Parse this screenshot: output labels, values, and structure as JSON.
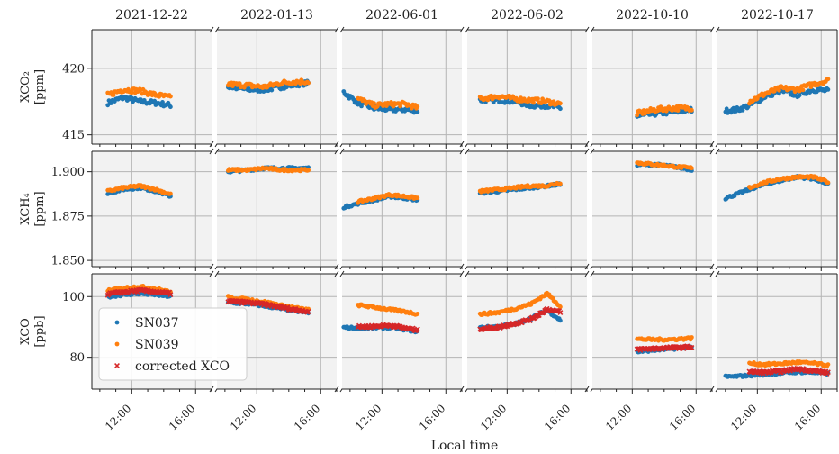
{
  "chart_data": {
    "type": "scatter",
    "xlabel": "Local time",
    "dates": [
      "2021-12-22",
      "2022-01-13",
      "2022-06-01",
      "2022-06-02",
      "2022-10-10",
      "2022-10-17"
    ],
    "xrange_hours": [
      9.5,
      17
    ],
    "xticks": [
      12,
      16
    ],
    "xtick_labels": [
      "12:00",
      "16:00"
    ],
    "panels": [
      {
        "ylabel": [
          "XCO₂",
          "[ppm]"
        ],
        "ylim": [
          414.3,
          422.9
        ],
        "yticks": [
          415,
          420
        ],
        "ytick_labels": [
          "415",
          "420"
        ]
      },
      {
        "ylabel": [
          "XCH₄",
          "[ppm]"
        ],
        "ylim": [
          1.8465,
          1.9115
        ],
        "yticks": [
          1.85,
          1.875,
          1.9
        ],
        "ytick_labels": [
          "1.850",
          "1.875",
          "1.900"
        ]
      },
      {
        "ylabel": [
          "XCO",
          "[ppb]"
        ],
        "ylim": [
          69.5,
          107.5
        ],
        "yticks": [
          80,
          100
        ],
        "ytick_labels": [
          "80",
          "100"
        ]
      }
    ],
    "legend": {
      "placement": "lower-left of XCO panel",
      "entries": [
        "SN037",
        "SN039",
        "corrected XCO"
      ]
    },
    "series": [
      {
        "name": "SN037",
        "color": "#1f77b4",
        "marker": "circle"
      },
      {
        "name": "SN039",
        "color": "#ff7f0e",
        "marker": "circle"
      },
      {
        "name": "corrected XCO",
        "color": "#d62728",
        "marker": "cross",
        "panel": "XCO"
      }
    ],
    "data": {
      "XCO2": {
        "SN037": [
          [
            [
              10.5,
              417.4
            ],
            [
              11.5,
              417.8
            ],
            [
              12.5,
              417.5
            ],
            [
              13.5,
              417.4
            ],
            [
              14.5,
              417.2
            ]
          ],
          [
            [
              10.2,
              418.6
            ],
            [
              11.5,
              418.4
            ],
            [
              12.5,
              418.4
            ],
            [
              13.5,
              418.6
            ],
            [
              14.5,
              418.8
            ],
            [
              15.3,
              418.9
            ]
          ],
          [
            [
              9.6,
              418.2
            ],
            [
              10.5,
              417.4
            ],
            [
              11.5,
              417.0
            ],
            [
              12.5,
              416.9
            ],
            [
              13.5,
              416.9
            ],
            [
              14.3,
              416.8
            ]
          ],
          [
            [
              10.3,
              417.6
            ],
            [
              11.5,
              417.6
            ],
            [
              12.5,
              417.5
            ],
            [
              13.5,
              417.2
            ],
            [
              14.5,
              417.2
            ],
            [
              15.4,
              417.0
            ]
          ],
          [
            [
              12.3,
              416.4
            ],
            [
              13.5,
              416.6
            ],
            [
              14.5,
              416.7
            ],
            [
              15.8,
              416.9
            ]
          ],
          [
            [
              10.0,
              416.8
            ],
            [
              10.8,
              416.9
            ],
            [
              11.5,
              417.2
            ],
            [
              12.5,
              417.9
            ],
            [
              13.5,
              418.3
            ],
            [
              14.5,
              418.0
            ],
            [
              15.5,
              418.4
            ],
            [
              16.5,
              418.3
            ]
          ]
        ],
        "SN039": [
          [
            [
              10.5,
              418.0
            ],
            [
              11.5,
              418.4
            ],
            [
              12.5,
              418.3
            ],
            [
              13.5,
              418.0
            ],
            [
              14.5,
              417.8
            ]
          ],
          [
            [
              10.2,
              418.8
            ],
            [
              11.5,
              418.7
            ],
            [
              12.5,
              418.6
            ],
            [
              13.5,
              418.9
            ],
            [
              14.5,
              419.0
            ],
            [
              15.3,
              419.0
            ]
          ],
          [
            [
              10.5,
              417.7
            ],
            [
              11.5,
              417.2
            ],
            [
              12.5,
              417.3
            ],
            [
              13.5,
              417.3
            ],
            [
              14.3,
              417.0
            ]
          ],
          [
            [
              10.3,
              417.7
            ],
            [
              11.5,
              417.9
            ],
            [
              12.5,
              417.7
            ],
            [
              13.5,
              417.6
            ],
            [
              14.5,
              417.5
            ],
            [
              15.4,
              417.3
            ]
          ],
          [
            [
              12.3,
              416.6
            ],
            [
              13.5,
              416.9
            ],
            [
              14.5,
              417.0
            ],
            [
              15.8,
              417.0
            ]
          ],
          [
            [
              11.5,
              417.5
            ],
            [
              12.5,
              418.1
            ],
            [
              13.5,
              418.5
            ],
            [
              14.5,
              418.4
            ],
            [
              15.5,
              418.8
            ],
            [
              16.5,
              419.1
            ]
          ]
        ]
      },
      "XCH4": {
        "SN037": [
          [
            [
              10.5,
              1.888
            ],
            [
              11.5,
              1.89
            ],
            [
              12.5,
              1.891
            ],
            [
              13.5,
              1.889
            ],
            [
              14.5,
              1.886
            ]
          ],
          [
            [
              10.2,
              1.9
            ],
            [
              11.5,
              1.901
            ],
            [
              12.5,
              1.902
            ],
            [
              13.5,
              1.902
            ],
            [
              14.5,
              1.902
            ],
            [
              15.3,
              1.902
            ]
          ],
          [
            [
              9.6,
              1.88
            ],
            [
              10.5,
              1.882
            ],
            [
              11.5,
              1.884
            ],
            [
              12.5,
              1.886
            ],
            [
              13.5,
              1.885
            ],
            [
              14.3,
              1.884
            ]
          ],
          [
            [
              10.3,
              1.888
            ],
            [
              11.5,
              1.889
            ],
            [
              12.5,
              1.89
            ],
            [
              13.5,
              1.891
            ],
            [
              14.5,
              1.892
            ],
            [
              15.4,
              1.893
            ]
          ],
          [
            [
              12.3,
              1.904
            ],
            [
              13.5,
              1.904
            ],
            [
              14.5,
              1.903
            ],
            [
              15.8,
              1.901
            ]
          ],
          [
            [
              10.0,
              1.885
            ],
            [
              11.5,
              1.89
            ],
            [
              12.5,
              1.893
            ],
            [
              13.5,
              1.895
            ],
            [
              14.5,
              1.897
            ],
            [
              15.5,
              1.896
            ],
            [
              16.5,
              1.893
            ]
          ]
        ],
        "SN039": [
          [
            [
              10.5,
              1.889
            ],
            [
              11.5,
              1.891
            ],
            [
              12.5,
              1.892
            ],
            [
              13.5,
              1.89
            ],
            [
              14.5,
              1.887
            ]
          ],
          [
            [
              10.2,
              1.901
            ],
            [
              11.5,
              1.901
            ],
            [
              12.5,
              1.902
            ],
            [
              13.5,
              1.901
            ],
            [
              14.5,
              1.901
            ],
            [
              15.3,
              1.901
            ]
          ],
          [
            [
              10.5,
              1.883
            ],
            [
              11.5,
              1.885
            ],
            [
              12.5,
              1.887
            ],
            [
              13.5,
              1.886
            ],
            [
              14.3,
              1.885
            ]
          ],
          [
            [
              10.3,
              1.889
            ],
            [
              11.5,
              1.89
            ],
            [
              12.5,
              1.891
            ],
            [
              13.5,
              1.892
            ],
            [
              14.5,
              1.892
            ],
            [
              15.4,
              1.894
            ]
          ],
          [
            [
              12.3,
              1.905
            ],
            [
              13.5,
              1.904
            ],
            [
              14.5,
              1.903
            ],
            [
              15.8,
              1.902
            ]
          ],
          [
            [
              11.5,
              1.891
            ],
            [
              12.5,
              1.894
            ],
            [
              13.5,
              1.896
            ],
            [
              14.5,
              1.897
            ],
            [
              15.5,
              1.897
            ],
            [
              16.5,
              1.894
            ]
          ]
        ]
      },
      "XCO": {
        "SN037": [
          [
            [
              10.5,
              100.0
            ],
            [
              11.5,
              100.6
            ],
            [
              12.5,
              101.0
            ],
            [
              13.5,
              100.6
            ],
            [
              14.5,
              100.0
            ]
          ],
          [
            [
              10.2,
              98.0
            ],
            [
              11.5,
              97.6
            ],
            [
              12.5,
              96.9
            ],
            [
              13.5,
              96.0
            ],
            [
              14.5,
              95.2
            ],
            [
              15.3,
              94.6
            ]
          ],
          [
            [
              9.6,
              89.8
            ],
            [
              10.5,
              89.6
            ],
            [
              11.5,
              89.7
            ],
            [
              12.5,
              89.8
            ],
            [
              13.5,
              89.1
            ],
            [
              14.3,
              88.4
            ]
          ],
          [
            [
              10.3,
              89.8
            ],
            [
              11.5,
              90.1
            ],
            [
              12.5,
              91.0
            ],
            [
              13.5,
              92.8
            ],
            [
              14.5,
              95.5
            ],
            [
              15.4,
              92.0
            ]
          ],
          [
            [
              12.3,
              81.8
            ],
            [
              13.5,
              82.4
            ],
            [
              14.5,
              82.8
            ],
            [
              15.8,
              83.5
            ]
          ],
          [
            [
              10.0,
              73.5
            ],
            [
              11.5,
              74.0
            ],
            [
              12.5,
              74.4
            ],
            [
              13.5,
              74.8
            ],
            [
              14.5,
              75.1
            ],
            [
              15.5,
              75.0
            ],
            [
              16.5,
              74.6
            ]
          ]
        ],
        "SN039": [
          [
            [
              10.5,
              102.0
            ],
            [
              11.5,
              102.8
            ],
            [
              12.5,
              103.3
            ],
            [
              13.5,
              102.6
            ],
            [
              14.5,
              101.4
            ]
          ],
          [
            [
              10.2,
              99.8
            ],
            [
              11.5,
              99.0
            ],
            [
              12.5,
              98.2
            ],
            [
              13.5,
              97.1
            ],
            [
              14.5,
              96.2
            ],
            [
              15.3,
              95.5
            ]
          ],
          [
            [
              10.5,
              97.2
            ],
            [
              11.5,
              96.5
            ],
            [
              12.5,
              95.7
            ],
            [
              13.5,
              95.0
            ],
            [
              14.3,
              94.2
            ]
          ],
          [
            [
              10.3,
              94.2
            ],
            [
              11.5,
              94.8
            ],
            [
              12.5,
              96.0
            ],
            [
              13.5,
              97.6
            ],
            [
              14.5,
              101.0
            ],
            [
              15.4,
              96.5
            ]
          ],
          [
            [
              12.3,
              86.0
            ],
            [
              13.5,
              85.8
            ],
            [
              14.5,
              85.9
            ],
            [
              15.8,
              86.3
            ]
          ],
          [
            [
              11.5,
              78.0
            ],
            [
              12.5,
              77.6
            ],
            [
              13.5,
              77.9
            ],
            [
              14.5,
              78.3
            ],
            [
              15.5,
              78.0
            ],
            [
              16.5,
              77.2
            ]
          ]
        ],
        "corrected XCO": [
          [
            [
              10.5,
              100.8
            ],
            [
              11.5,
              101.5
            ],
            [
              12.5,
              102.0
            ],
            [
              13.5,
              101.6
            ],
            [
              14.5,
              100.9
            ]
          ],
          [
            [
              10.2,
              98.5
            ],
            [
              11.5,
              98.0
            ],
            [
              12.5,
              97.4
            ],
            [
              13.5,
              96.5
            ],
            [
              14.5,
              95.6
            ],
            [
              15.3,
              95.0
            ]
          ],
          [
            [
              10.5,
              90.0
            ],
            [
              11.5,
              90.2
            ],
            [
              12.5,
              90.5
            ],
            [
              13.5,
              89.6
            ],
            [
              14.3,
              88.8
            ]
          ],
          [
            [
              10.3,
              89.4
            ],
            [
              11.5,
              89.9
            ],
            [
              12.5,
              91.2
            ],
            [
              13.5,
              92.5
            ],
            [
              14.5,
              95.8
            ],
            [
              15.4,
              94.8
            ]
          ],
          [
            [
              12.3,
              82.6
            ],
            [
              13.5,
              82.9
            ],
            [
              14.5,
              83.1
            ],
            [
              15.8,
              83.4
            ]
          ],
          [
            [
              11.5,
              75.2
            ],
            [
              12.5,
              75.0
            ],
            [
              13.5,
              75.4
            ],
            [
              14.5,
              76.2
            ],
            [
              15.5,
              75.6
            ],
            [
              16.5,
              74.8
            ]
          ]
        ]
      }
    }
  }
}
